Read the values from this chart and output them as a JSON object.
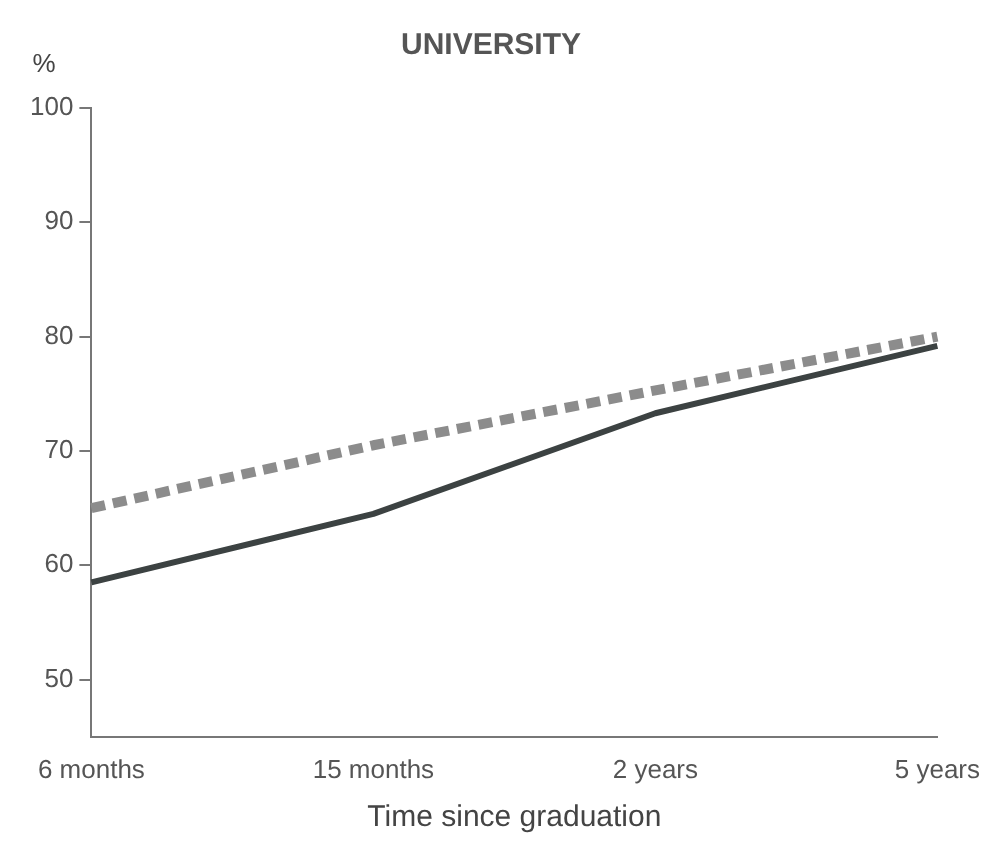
{
  "chart_data": {
    "type": "line",
    "title": "UNIVERSITY",
    "ylabel": "%",
    "xlabel": "Time since graduation",
    "categories": [
      "6 months",
      "15 months",
      "2 years",
      "5 years"
    ],
    "series": [
      {
        "color": "#3c4242",
        "values": [
          58.5,
          64.5,
          73.3,
          79.2
        ],
        "line_style": "solid"
      },
      {
        "color": "#8c8c8c",
        "values": [
          65,
          70.5,
          75.3,
          80
        ],
        "line_style": "dashed"
      }
    ],
    "ylim": [
      45,
      100
    ],
    "yticks": [
      50,
      60,
      70,
      80,
      90,
      100
    ],
    "grid": false,
    "legend": false,
    "marker": "none"
  }
}
